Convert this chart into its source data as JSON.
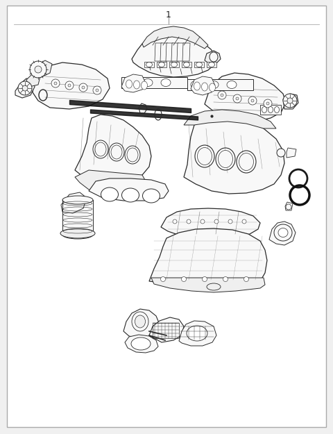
{
  "title": "1",
  "bg_color": "#f0f0f0",
  "border_color": "#999999",
  "line_color": "#2a2a2a",
  "fig_width": 4.8,
  "fig_height": 6.25,
  "dpi": 100,
  "fill_light": "#f8f8f8",
  "fill_mid": "#efefef",
  "fill_dark": "#e0e0e0"
}
